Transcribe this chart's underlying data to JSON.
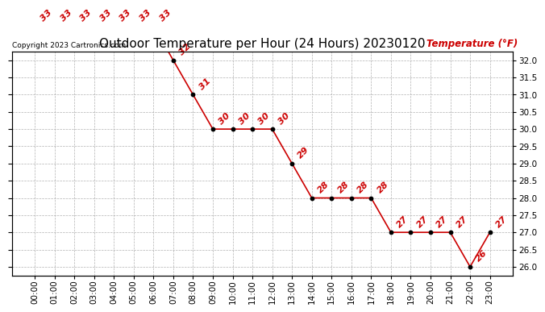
{
  "title": "Outdoor Temperature per Hour (24 Hours) 20230120",
  "copyright_text": "Copyright 2023 Cartronics.com",
  "legend_label": "Temperature (°F)",
  "hours": [
    "00:00",
    "01:00",
    "02:00",
    "03:00",
    "04:00",
    "05:00",
    "06:00",
    "07:00",
    "08:00",
    "09:00",
    "10:00",
    "11:00",
    "12:00",
    "13:00",
    "14:00",
    "15:00",
    "16:00",
    "17:00",
    "18:00",
    "19:00",
    "20:00",
    "21:00",
    "22:00",
    "23:00"
  ],
  "temps": [
    33,
    33,
    33,
    33,
    33,
    33,
    33,
    32,
    31,
    30,
    30,
    30,
    30,
    29,
    28,
    28,
    28,
    28,
    27,
    27,
    27,
    27,
    26,
    27
  ],
  "line_color": "#cc0000",
  "marker_color": "#000000",
  "label_color": "#cc0000",
  "grid_color": "#aaaaaa",
  "bg_color": "#ffffff",
  "title_fontsize": 11,
  "label_fontsize": 8,
  "tick_fontsize": 7.5,
  "ylim_min": 25.75,
  "ylim_max": 32.25,
  "yticks": [
    26.0,
    26.5,
    27.0,
    27.5,
    28.0,
    28.5,
    29.0,
    29.5,
    30.0,
    30.5,
    31.0,
    31.5,
    32.0
  ]
}
